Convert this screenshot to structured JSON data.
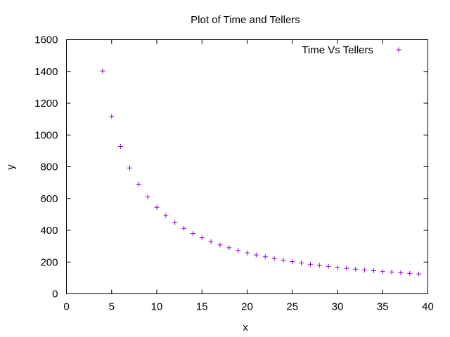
{
  "chart_data": {
    "type": "scatter",
    "title": "Plot of Time and Tellers",
    "xlabel": "x",
    "ylabel": "y",
    "xlim": [
      0,
      40
    ],
    "ylim": [
      0,
      1600
    ],
    "xticks": [
      0,
      5,
      10,
      15,
      20,
      25,
      30,
      35,
      40
    ],
    "yticks": [
      0,
      200,
      400,
      600,
      800,
      1000,
      1200,
      1400,
      1600
    ],
    "grid": false,
    "legend_position": "top-right",
    "marker": "+",
    "series": [
      {
        "name": "Time Vs Tellers",
        "color": "#9400d3",
        "x": [
          4,
          5,
          6,
          7,
          8,
          9,
          10,
          11,
          12,
          13,
          14,
          15,
          16,
          17,
          18,
          19,
          20,
          21,
          22,
          23,
          24,
          25,
          26,
          27,
          28,
          29,
          30,
          31,
          32,
          33,
          34,
          35,
          36,
          37,
          38,
          39
        ],
        "y": [
          1403,
          1117,
          928,
          792,
          690,
          610,
          545,
          493,
          450,
          412,
          380,
          353,
          329,
          308,
          290,
          273,
          258,
          245,
          233,
          222,
          212,
          203,
          194,
          186,
          179,
          173,
          166,
          161,
          155,
          150,
          146,
          141,
          137,
          133,
          129,
          125
        ]
      }
    ]
  }
}
